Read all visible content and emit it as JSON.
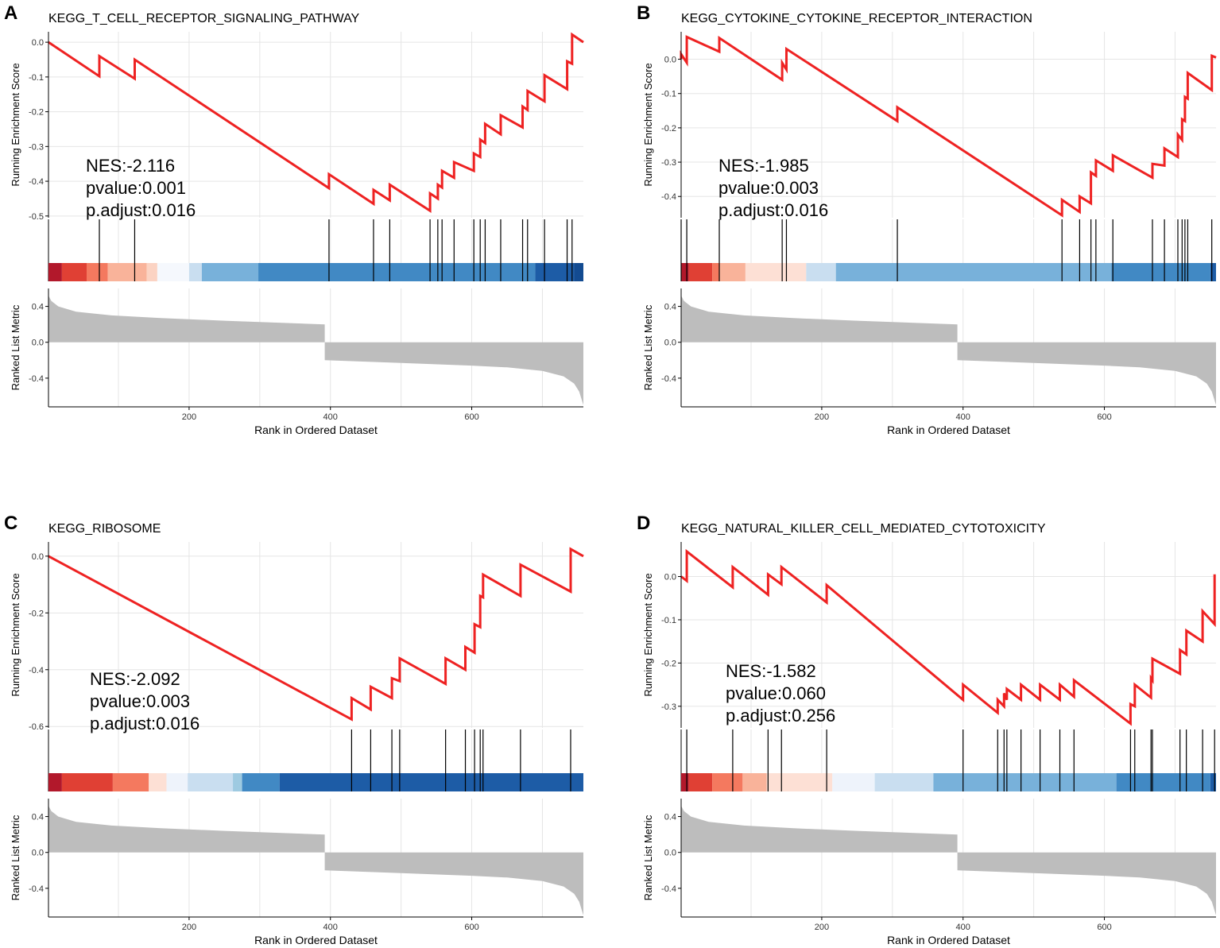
{
  "figure": {
    "x_axis_label": "Rank in Ordered Dataset",
    "es_axis_label": "Running Enrichment Score",
    "metric_axis_label": "Ranked List Metric",
    "x_ticks": [
      200,
      400,
      600
    ],
    "x_range": [
      1,
      758
    ],
    "metric_ticks": [
      0.4,
      0.0,
      -0.4
    ],
    "metric_tick_labels": [
      "0.4",
      "0.0",
      "-0.4"
    ],
    "metric_range": [
      -0.72,
      0.6
    ],
    "metric_curve": {
      "split_rank": 392,
      "positive": [
        [
          1,
          0.52
        ],
        [
          5,
          0.46
        ],
        [
          15,
          0.4
        ],
        [
          40,
          0.34
        ],
        [
          90,
          0.3
        ],
        [
          160,
          0.27
        ],
        [
          250,
          0.24
        ],
        [
          392,
          0.2
        ]
      ],
      "negative": [
        [
          392,
          -0.2
        ],
        [
          500,
          -0.23
        ],
        [
          600,
          -0.26
        ],
        [
          650,
          -0.28
        ],
        [
          700,
          -0.32
        ],
        [
          730,
          -0.38
        ],
        [
          745,
          -0.46
        ],
        [
          752,
          -0.55
        ],
        [
          758,
          -0.7
        ]
      ]
    },
    "colors": {
      "es_line": "#ee2222",
      "metric_fill": "#bdbdbd",
      "hit": "#000000",
      "grid": "#e5e5e5",
      "axis": "#000000"
    }
  },
  "chart_data": [
    {
      "panel": "A",
      "type": "line",
      "title": "KEGG_T_CELL_RECEPTOR_SIGNALING_PATHWAY",
      "xlabel": "Rank in Ordered Dataset",
      "ylabel": "Running Enrichment Score",
      "ylim": [
        -0.505,
        0.03
      ],
      "yticks": [
        0.0,
        -0.1,
        -0.2,
        -0.3,
        -0.4,
        -0.5
      ],
      "ytick_labels": [
        "0.0",
        "-0.1",
        "-0.2",
        "-0.3",
        "-0.4",
        "-0.5"
      ],
      "start_es": 0.0,
      "hits": [
        73,
        123,
        398,
        461,
        484,
        541,
        552,
        558,
        575,
        603,
        612,
        619,
        641,
        672,
        679,
        703,
        735,
        742
      ],
      "hit_jump": 0.055,
      "es_points": [
        [
          1,
          0.0
        ],
        [
          73,
          -0.098
        ],
        [
          73,
          -0.04
        ],
        [
          123,
          -0.105
        ],
        [
          123,
          -0.05
        ],
        [
          398,
          -0.42
        ],
        [
          398,
          -0.38
        ],
        [
          461,
          -0.465
        ],
        [
          461,
          -0.425
        ],
        [
          484,
          -0.455
        ],
        [
          484,
          -0.41
        ],
        [
          541,
          -0.485
        ],
        [
          541,
          -0.435
        ],
        [
          552,
          -0.45
        ],
        [
          552,
          -0.41
        ],
        [
          558,
          -0.418
        ],
        [
          558,
          -0.37
        ],
        [
          575,
          -0.39
        ],
        [
          575,
          -0.345
        ],
        [
          603,
          -0.37
        ],
        [
          603,
          -0.32
        ],
        [
          612,
          -0.33
        ],
        [
          612,
          -0.28
        ],
        [
          619,
          -0.29
        ],
        [
          619,
          -0.235
        ],
        [
          641,
          -0.265
        ],
        [
          641,
          -0.21
        ],
        [
          672,
          -0.245
        ],
        [
          672,
          -0.185
        ],
        [
          679,
          -0.195
        ],
        [
          679,
          -0.14
        ],
        [
          703,
          -0.17
        ],
        [
          703,
          -0.095
        ],
        [
          735,
          -0.135
        ],
        [
          735,
          -0.055
        ],
        [
          742,
          -0.062
        ],
        [
          742,
          0.022
        ],
        [
          758,
          0.0
        ]
      ],
      "heat_segments": [
        {
          "from": 1,
          "to": 20,
          "color": "#b2182b"
        },
        {
          "from": 20,
          "to": 55,
          "color": "#e04034"
        },
        {
          "from": 55,
          "to": 85,
          "color": "#f4795f"
        },
        {
          "from": 85,
          "to": 140,
          "color": "#f9b39a"
        },
        {
          "from": 140,
          "to": 155,
          "color": "#fbd3c3"
        },
        {
          "from": 155,
          "to": 200,
          "color": "#f5f8fd"
        },
        {
          "from": 200,
          "to": 218,
          "color": "#c9def0"
        },
        {
          "from": 218,
          "to": 298,
          "color": "#78b1da"
        },
        {
          "from": 298,
          "to": 690,
          "color": "#4189c4"
        },
        {
          "from": 690,
          "to": 745,
          "color": "#1d5ca6"
        },
        {
          "from": 745,
          "to": 758,
          "color": "#134b91"
        }
      ],
      "annotation": {
        "nes": "NES:-2.116",
        "pvalue": "pvalue:0.001",
        "padjust": "p.adjust:0.016"
      }
    },
    {
      "panel": "B",
      "type": "line",
      "title": "KEGG_CYTOKINE_CYTOKINE_RECEPTOR_INTERACTION",
      "xlabel": "Rank in Ordered Dataset",
      "ylabel": "Running Enrichment Score",
      "ylim": [
        -0.462,
        0.08
      ],
      "yticks": [
        0.0,
        -0.1,
        -0.2,
        -0.3,
        -0.4
      ],
      "ytick_labels": [
        "0.0",
        "-0.1",
        "-0.2",
        "-0.3",
        "-0.4"
      ],
      "start_es": 0.0,
      "hits": [
        1,
        9,
        55,
        144,
        150,
        307,
        540,
        565,
        581,
        588,
        612,
        668,
        685,
        704,
        710,
        714,
        718,
        752
      ],
      "hit_jump": 0.05,
      "es_points": [
        [
          1,
          0.0
        ],
        [
          1,
          0.015
        ],
        [
          9,
          -0.01
        ],
        [
          9,
          0.065
        ],
        [
          55,
          0.022
        ],
        [
          55,
          0.062
        ],
        [
          144,
          -0.06
        ],
        [
          144,
          -0.01
        ],
        [
          150,
          -0.03
        ],
        [
          150,
          0.03
        ],
        [
          307,
          -0.18
        ],
        [
          307,
          -0.14
        ],
        [
          540,
          -0.455
        ],
        [
          540,
          -0.41
        ],
        [
          565,
          -0.445
        ],
        [
          565,
          -0.4
        ],
        [
          581,
          -0.42
        ],
        [
          581,
          -0.33
        ],
        [
          588,
          -0.34
        ],
        [
          588,
          -0.295
        ],
        [
          612,
          -0.325
        ],
        [
          612,
          -0.28
        ],
        [
          668,
          -0.345
        ],
        [
          668,
          -0.305
        ],
        [
          685,
          -0.31
        ],
        [
          685,
          -0.26
        ],
        [
          704,
          -0.285
        ],
        [
          704,
          -0.22
        ],
        [
          710,
          -0.235
        ],
        [
          710,
          -0.175
        ],
        [
          714,
          -0.18
        ],
        [
          714,
          -0.11
        ],
        [
          718,
          -0.115
        ],
        [
          718,
          -0.04
        ],
        [
          752,
          -0.09
        ],
        [
          752,
          0.01
        ],
        [
          758,
          0.005
        ]
      ],
      "heat_segments": [
        {
          "from": 1,
          "to": 12,
          "color": "#b2182b"
        },
        {
          "from": 12,
          "to": 45,
          "color": "#e04034"
        },
        {
          "from": 45,
          "to": 55,
          "color": "#f4795f"
        },
        {
          "from": 55,
          "to": 92,
          "color": "#f9b39a"
        },
        {
          "from": 92,
          "to": 178,
          "color": "#fde0d5"
        },
        {
          "from": 178,
          "to": 220,
          "color": "#c9def0"
        },
        {
          "from": 220,
          "to": 610,
          "color": "#78b1da"
        },
        {
          "from": 610,
          "to": 750,
          "color": "#4189c4"
        },
        {
          "from": 750,
          "to": 758,
          "color": "#1d5ca6"
        }
      ],
      "annotation": {
        "nes": "NES:-1.985",
        "pvalue": "pvalue:0.003",
        "padjust": "p.adjust:0.016"
      }
    },
    {
      "panel": "C",
      "type": "line",
      "title": "KEGG_RIBOSOME",
      "xlabel": "Rank in Ordered Dataset",
      "ylabel": "Running Enrichment Score",
      "ylim": [
        -0.605,
        0.05
      ],
      "yticks": [
        0.0,
        -0.2,
        -0.4,
        -0.6
      ],
      "ytick_labels": [
        "0.0",
        "-0.2",
        "-0.4",
        "-0.6"
      ],
      "start_es": 0.0,
      "hits": [
        430,
        457,
        487,
        498,
        563,
        591,
        604,
        612,
        616,
        669,
        740
      ],
      "hit_jump": 0.08,
      "es_points": [
        [
          1,
          0.0
        ],
        [
          430,
          -0.575
        ],
        [
          430,
          -0.5
        ],
        [
          457,
          -0.54
        ],
        [
          457,
          -0.46
        ],
        [
          487,
          -0.5
        ],
        [
          487,
          -0.43
        ],
        [
          498,
          -0.44
        ],
        [
          498,
          -0.36
        ],
        [
          563,
          -0.45
        ],
        [
          563,
          -0.36
        ],
        [
          591,
          -0.4
        ],
        [
          591,
          -0.32
        ],
        [
          604,
          -0.34
        ],
        [
          604,
          -0.24
        ],
        [
          612,
          -0.25
        ],
        [
          612,
          -0.14
        ],
        [
          616,
          -0.145
        ],
        [
          616,
          -0.065
        ],
        [
          669,
          -0.14
        ],
        [
          669,
          -0.03
        ],
        [
          740,
          -0.125
        ],
        [
          740,
          0.025
        ],
        [
          758,
          0.0
        ]
      ],
      "heat_segments": [
        {
          "from": 1,
          "to": 20,
          "color": "#b2182b"
        },
        {
          "from": 20,
          "to": 92,
          "color": "#e04034"
        },
        {
          "from": 92,
          "to": 143,
          "color": "#f4795f"
        },
        {
          "from": 143,
          "to": 168,
          "color": "#fde0d5"
        },
        {
          "from": 168,
          "to": 198,
          "color": "#eef3fb"
        },
        {
          "from": 198,
          "to": 262,
          "color": "#c9def0"
        },
        {
          "from": 262,
          "to": 275,
          "color": "#9ecae1"
        },
        {
          "from": 275,
          "to": 328,
          "color": "#4189c4"
        },
        {
          "from": 328,
          "to": 758,
          "color": "#1d5ca6"
        }
      ],
      "annotation": {
        "nes": "NES:-2.092",
        "pvalue": "pvalue:0.003",
        "padjust": "p.adjust:0.016"
      }
    },
    {
      "panel": "D",
      "type": "line",
      "title": "KEGG_NATURAL_KILLER_CELL_MEDIATED_CYTOTOXICITY",
      "xlabel": "Rank in Ordered Dataset",
      "ylabel": "Running Enrichment Score",
      "ylim": [
        -0.35,
        0.08
      ],
      "yticks": [
        0.0,
        -0.1,
        -0.2,
        -0.3
      ],
      "ytick_labels": [
        "0.0",
        "-0.1",
        "-0.2",
        "-0.3"
      ],
      "start_es": 0.0,
      "hits": [
        9,
        74,
        124,
        143,
        207,
        400,
        449,
        458,
        462,
        482,
        509,
        537,
        557,
        637,
        643,
        666,
        668,
        707,
        716,
        739,
        756
      ],
      "hit_jump": 0.045,
      "es_points": [
        [
          1,
          0.0
        ],
        [
          9,
          -0.01
        ],
        [
          9,
          0.058
        ],
        [
          74,
          -0.025
        ],
        [
          74,
          0.022
        ],
        [
          124,
          -0.042
        ],
        [
          124,
          0.005
        ],
        [
          143,
          -0.018
        ],
        [
          143,
          0.022
        ],
        [
          207,
          -0.06
        ],
        [
          207,
          -0.02
        ],
        [
          400,
          -0.285
        ],
        [
          400,
          -0.25
        ],
        [
          449,
          -0.315
        ],
        [
          449,
          -0.285
        ],
        [
          458,
          -0.3
        ],
        [
          458,
          -0.27
        ],
        [
          462,
          -0.285
        ],
        [
          462,
          -0.26
        ],
        [
          482,
          -0.285
        ],
        [
          482,
          -0.25
        ],
        [
          509,
          -0.285
        ],
        [
          509,
          -0.25
        ],
        [
          537,
          -0.285
        ],
        [
          537,
          -0.25
        ],
        [
          557,
          -0.278
        ],
        [
          557,
          -0.24
        ],
        [
          637,
          -0.34
        ],
        [
          637,
          -0.295
        ],
        [
          643,
          -0.3
        ],
        [
          643,
          -0.25
        ],
        [
          666,
          -0.28
        ],
        [
          666,
          -0.235
        ],
        [
          668,
          -0.24
        ],
        [
          668,
          -0.19
        ],
        [
          707,
          -0.225
        ],
        [
          707,
          -0.17
        ],
        [
          716,
          -0.18
        ],
        [
          716,
          -0.125
        ],
        [
          739,
          -0.15
        ],
        [
          739,
          -0.08
        ],
        [
          756,
          -0.11
        ],
        [
          756,
          0.005
        ]
      ],
      "heat_segments": [
        {
          "from": 1,
          "to": 12,
          "color": "#b2182b"
        },
        {
          "from": 12,
          "to": 45,
          "color": "#e04034"
        },
        {
          "from": 45,
          "to": 88,
          "color": "#f4795f"
        },
        {
          "from": 88,
          "to": 122,
          "color": "#f9b39a"
        },
        {
          "from": 122,
          "to": 215,
          "color": "#fde0d5"
        },
        {
          "from": 215,
          "to": 275,
          "color": "#eef3fb"
        },
        {
          "from": 275,
          "to": 358,
          "color": "#c9def0"
        },
        {
          "from": 358,
          "to": 617,
          "color": "#78b1da"
        },
        {
          "from": 617,
          "to": 750,
          "color": "#4189c4"
        },
        {
          "from": 750,
          "to": 758,
          "color": "#1d5ca6"
        }
      ],
      "annotation": {
        "nes": "NES:-1.582",
        "pvalue": "pvalue:0.060",
        "padjust": "p.adjust:0.256"
      }
    }
  ]
}
